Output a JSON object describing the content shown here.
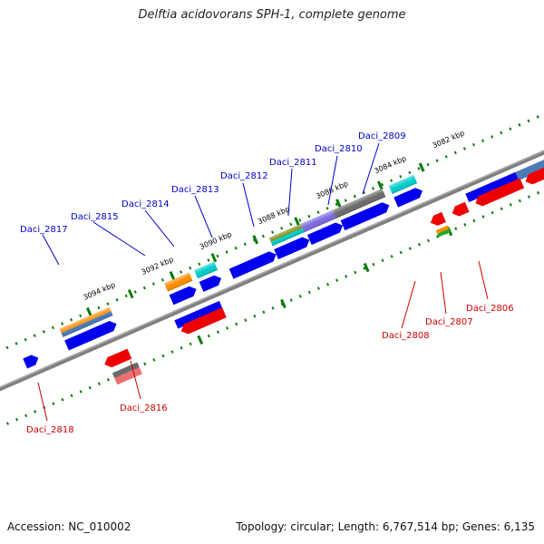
{
  "title": "Delftia acidovorans SPH-1, complete genome",
  "accession_text": "Accession: NC_010002",
  "summary_text": "Topology: circular; Length: 6,767,514 bp; Genes: 6,135",
  "kbp_labels": [
    "3082 kbp",
    "3084 kbp",
    "3086 kbp",
    "3088 kbp",
    "3090 kbp",
    "3092 kbp",
    "3094 kbp"
  ],
  "forward_gene_labels": [
    "Daci_2809",
    "Daci_2810",
    "Daci_2811",
    "Daci_2812",
    "Daci_2813",
    "Daci_2814",
    "Daci_2815",
    "Daci_2817"
  ],
  "reverse_gene_labels": [
    "Daci_2806",
    "Daci_2807",
    "Daci_2808",
    "Daci_2816",
    "Daci_2818"
  ],
  "colors": {
    "forward_label": "#0000cc",
    "reverse_label": "#cc0000",
    "cds_blue": "#0000ee",
    "gene_red": "#ee0000",
    "backbone": "#808080",
    "tick_green": "#0a7a0a",
    "orange": "#ff8c00",
    "cyan": "#00cccc",
    "olive": "#7a8a10",
    "purple": "#7a6ae0",
    "gray": "#6a6a6a",
    "steel": "#4a7ab8",
    "pink": "#e87070"
  }
}
